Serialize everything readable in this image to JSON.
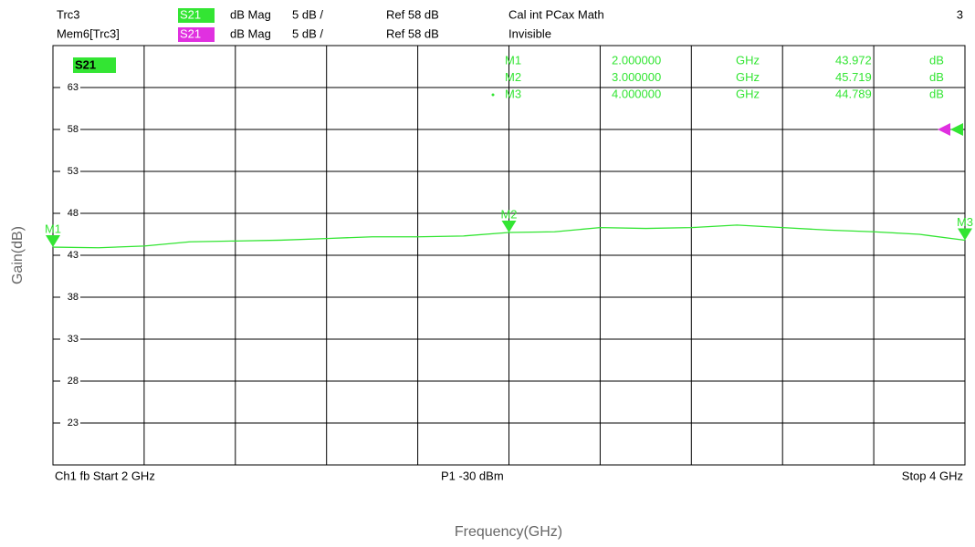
{
  "chart_data": {
    "type": "line",
    "header": [
      {
        "trace": "Trc3",
        "param": "S21",
        "format": "dB Mag",
        "scale": "5 dB /",
        "ref": "Ref 58 dB",
        "info": "Cal int PCax Math",
        "badge_color": "#33e533"
      },
      {
        "trace": "Mem6[Trc3]",
        "param": "S21",
        "format": "dB Mag",
        "scale": "5 dB /",
        "ref": "Ref 58 dB",
        "info": "Invisible",
        "badge_color": "#e030e0"
      }
    ],
    "channel_number": "3",
    "trace_label": "S21",
    "y_label": "Gain(dB)",
    "x_label": "Frequency(GHz)",
    "footer": {
      "left": "Ch1  fb  Start  2 GHz",
      "center": "P1  -30 dBm",
      "right": "Stop  4 GHz"
    },
    "x": [
      2.0,
      2.1,
      2.2,
      2.3,
      2.4,
      2.5,
      2.6,
      2.7,
      2.8,
      2.9,
      3.0,
      3.1,
      3.2,
      3.3,
      3.4,
      3.5,
      3.6,
      3.7,
      3.8,
      3.9,
      4.0
    ],
    "series": [
      {
        "name": "S21",
        "color": "#33e533",
        "values": [
          43.97,
          43.9,
          44.1,
          44.6,
          44.7,
          44.8,
          45.0,
          45.2,
          45.2,
          45.3,
          45.72,
          45.8,
          46.3,
          46.2,
          46.3,
          46.6,
          46.3,
          46.0,
          45.8,
          45.5,
          44.79
        ]
      }
    ],
    "xlim": [
      2,
      4
    ],
    "xticks": [
      2,
      2.2,
      2.4,
      2.6,
      2.8,
      3,
      3.2,
      3.4,
      3.6,
      3.8,
      4
    ],
    "ylim": [
      18,
      68
    ],
    "yticks": [
      63,
      58,
      53,
      48,
      43,
      38,
      33,
      28,
      23
    ],
    "grid": true,
    "ref_level": 58,
    "ref_colors": [
      "#e030e0",
      "#33e533"
    ],
    "markers": [
      {
        "name": "M1",
        "x": {
          "value": 2,
          "label": "2.000000"
        },
        "x_unit": "GHz",
        "y": 43.972,
        "y_unit": "dB"
      },
      {
        "name": "M2",
        "x": {
          "value": 3,
          "label": "3.000000"
        },
        "x_unit": "GHz",
        "y": 45.719,
        "y_unit": "dB"
      },
      {
        "name": "M3",
        "x": {
          "value": 4,
          "label": "4.000000"
        },
        "x_unit": "GHz",
        "y": 44.789,
        "y_unit": "dB"
      }
    ]
  }
}
